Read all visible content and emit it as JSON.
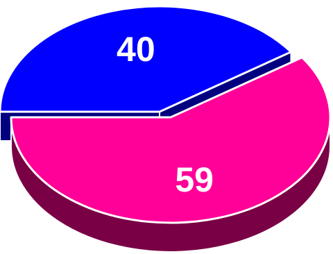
{
  "chart_data": {
    "type": "pie",
    "style": "3d-exploded",
    "slices": [
      {
        "value": 40,
        "label": "40",
        "color": "#0000ff",
        "side_color": "#000080"
      },
      {
        "value": 59,
        "label": "59",
        "color": "#ff0099",
        "side_color": "#7a0045"
      }
    ],
    "outline_color": "#ffffff",
    "legend": "none"
  }
}
